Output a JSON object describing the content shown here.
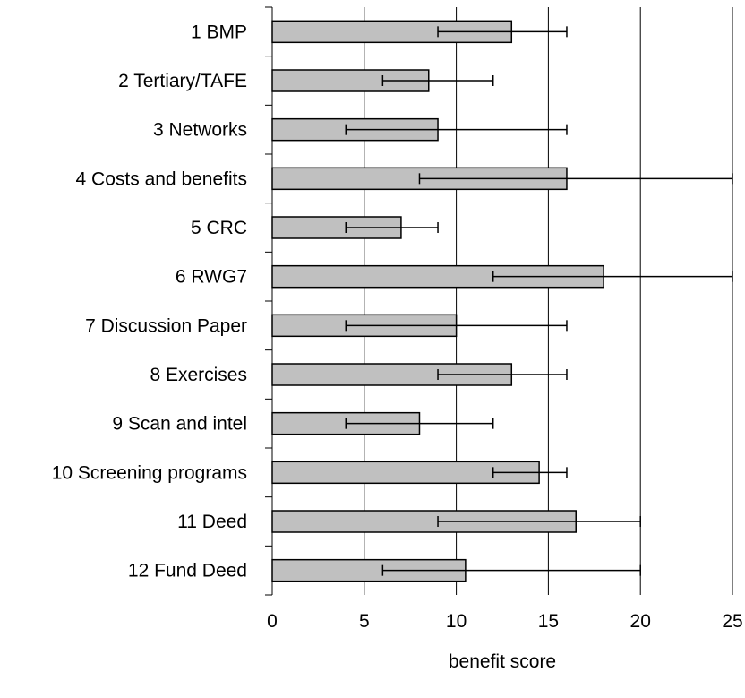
{
  "chart_data": {
    "type": "bar",
    "orientation": "horizontal",
    "categories": [
      "1 BMP",
      "2 Tertiary/TAFE",
      "3 Networks",
      "4 Costs and benefits",
      "5 CRC",
      "6 RWG7",
      "7 Discussion Paper",
      "8 Exercises",
      "9 Scan and intel",
      "10 Screening programs",
      "11 Deed",
      "12 Fund Deed"
    ],
    "values": [
      13,
      8.5,
      9,
      16,
      7,
      18,
      10,
      13,
      8,
      14.5,
      16.5,
      10.5
    ],
    "error_low": [
      9,
      6,
      4,
      8,
      4,
      12,
      4,
      9,
      4,
      12,
      9,
      6
    ],
    "error_high": [
      16,
      12,
      16,
      25,
      9,
      25,
      16,
      16,
      12,
      16,
      20,
      20
    ],
    "xlabel": "benefit score",
    "ylabel": "",
    "title": "",
    "xlim": [
      0,
      25
    ],
    "xticks": [
      0,
      5,
      10,
      15,
      20,
      25
    ],
    "grid": "vertical",
    "colors": {
      "bar_fill": "#c0c0c0",
      "bar_stroke": "#000000",
      "grid": "#000000",
      "error": "#000000"
    }
  }
}
